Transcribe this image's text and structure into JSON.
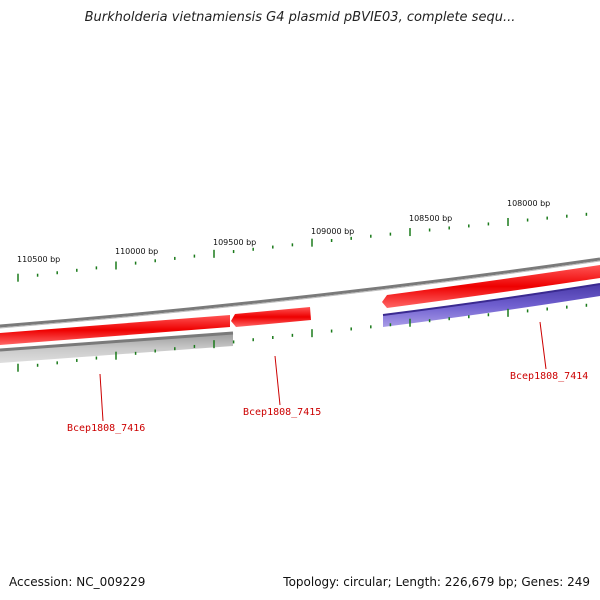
{
  "title": "Burkholderia vietnamiensis G4 plasmid pBVIE03, complete sequ...",
  "footer": {
    "accession": "Accession: NC_009229",
    "summary": "Topology: circular; Length: 226,679 bp; Genes: 249"
  },
  "ticks": {
    "labels": [
      "110500 bp",
      "110000 bp",
      "109500 bp",
      "109000 bp",
      "108500 bp",
      "108000 bp"
    ]
  },
  "genes": [
    {
      "name": "Bcep1808_7416",
      "strand": "+",
      "color": "#cc0000"
    },
    {
      "name": "Bcep1808_7415",
      "strand": "-",
      "color": "#cc0000"
    },
    {
      "name": "Bcep1808_7414",
      "strand": "-",
      "color": "#cc0000"
    }
  ],
  "colors": {
    "gene_red": "#ee1111",
    "gene_blue": "#6f5fcf",
    "gene_gray": "#c4c4c4",
    "backbone": "#7a7a7a",
    "tick": "#1a7a1a",
    "label": "#cc0000"
  }
}
